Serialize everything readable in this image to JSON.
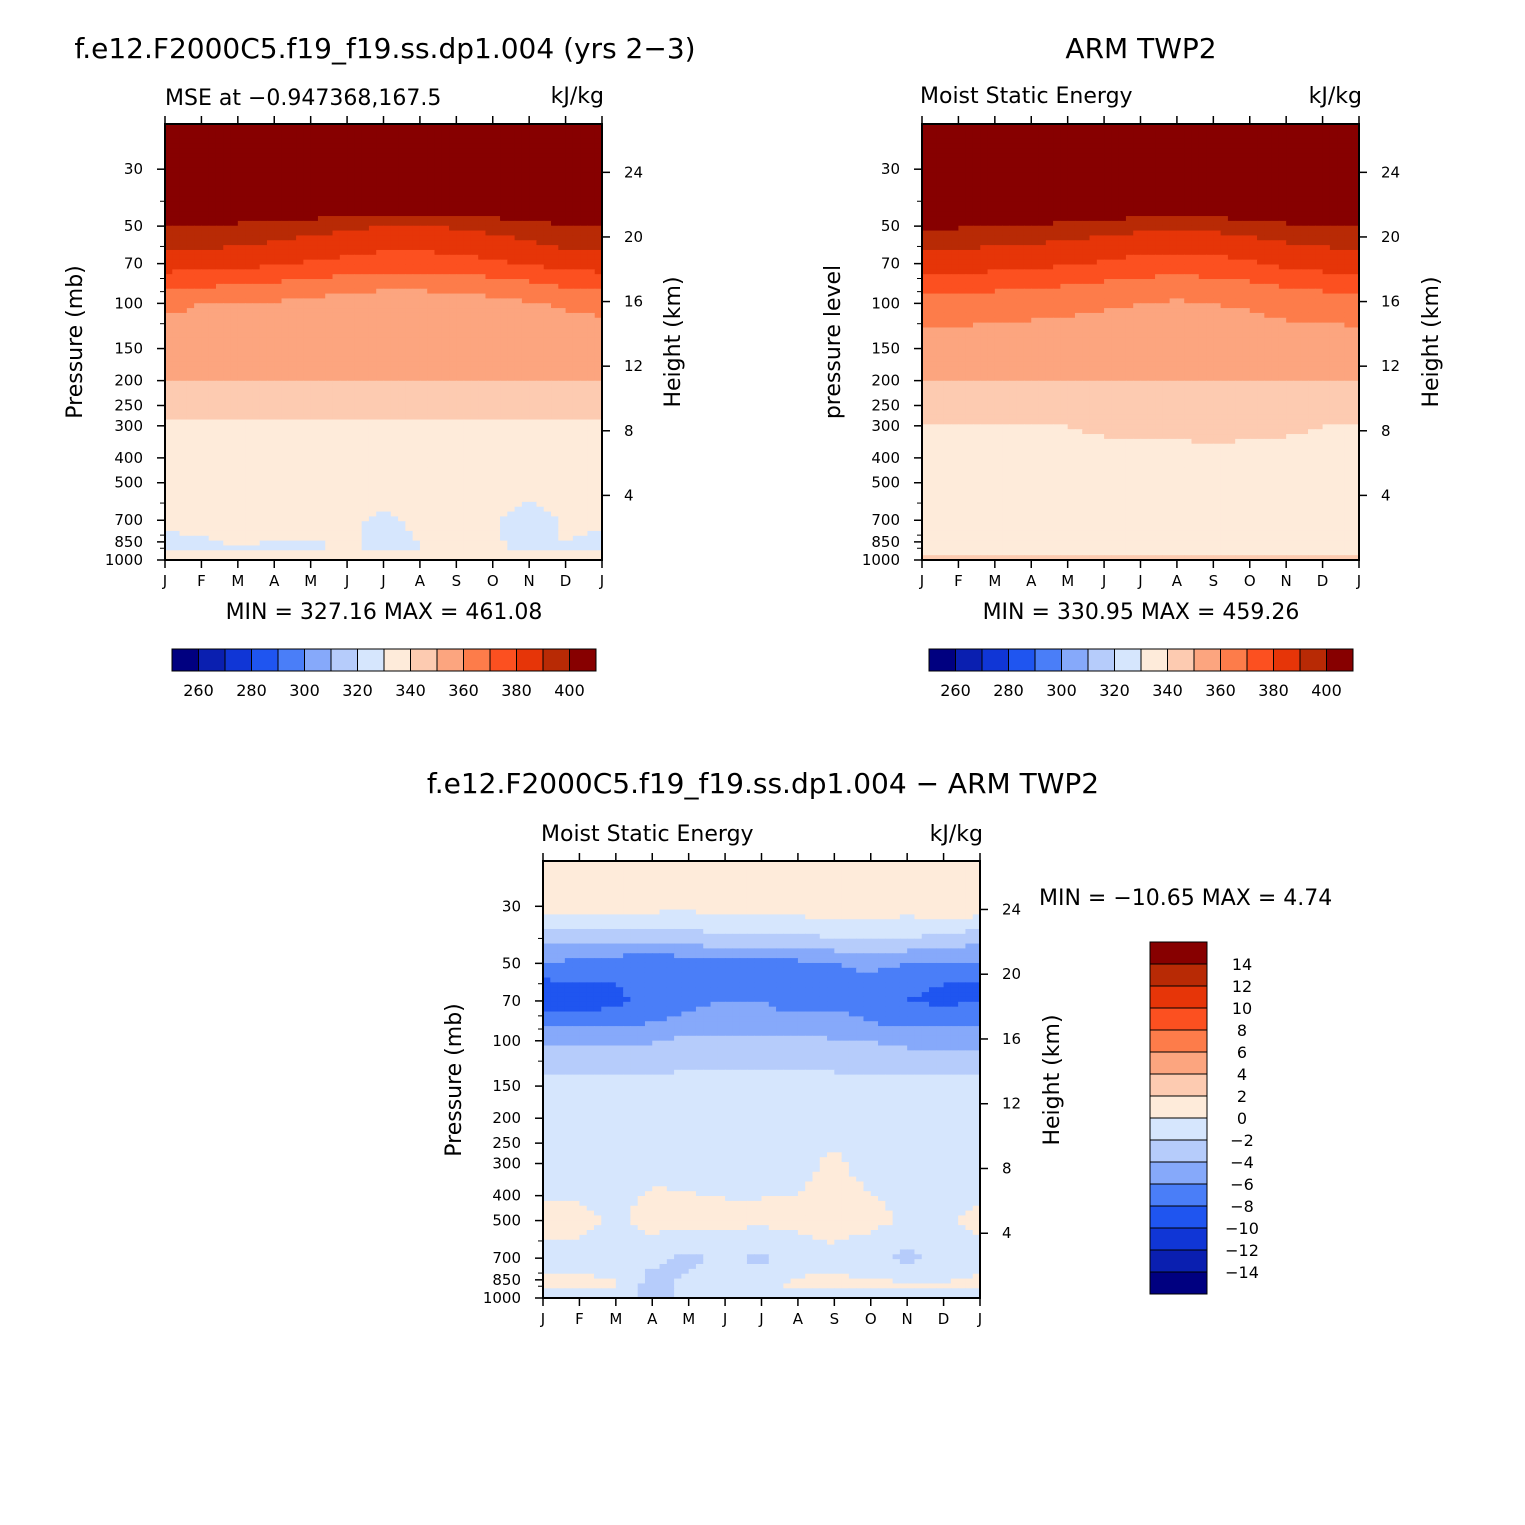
{
  "panels": {
    "model": {
      "title": "f.e12.F2000C5.f19_f19.ss.dp1.004 (yrs 2−3)",
      "subtitle_left": "MSE at −0.947368,167.5",
      "subtitle_right": "kJ/kg",
      "y_label": "Pressure (mb)",
      "y2_label": "Height (km)",
      "minmax": "MIN = 327.16 MAX = 461.08"
    },
    "obs": {
      "title": "ARM TWP2",
      "subtitle_left": "Moist Static Energy",
      "subtitle_right": "kJ/kg",
      "y_label": "pressure level",
      "y2_label": "Height (km)",
      "minmax": "MIN = 330.95 MAX = 459.26"
    },
    "diff": {
      "title": "f.e12.F2000C5.f19_f19.ss.dp1.004 − ARM TWP2",
      "subtitle_left": "Moist Static Energy",
      "subtitle_right": "kJ/kg",
      "y_label": "Pressure (mb)",
      "y2_label": "Height (km)",
      "minmax": "MIN = −10.65 MAX =    4.74"
    }
  },
  "colorbar_full": {
    "colors": [
      "#000080",
      "#0a1fb0",
      "#1036d6",
      "#1f55f0",
      "#4a7ef8",
      "#86a9fa",
      "#b6ccfb",
      "#d6e6fd",
      "#feebda",
      "#fdcbb1",
      "#fca57f",
      "#fd7c4a",
      "#fc5020",
      "#e63508",
      "#b82a05",
      "#870000"
    ],
    "labels": [
      "260",
      "280",
      "300",
      "320",
      "340",
      "360",
      "380",
      "400"
    ]
  },
  "colorbar_diff": {
    "colors": [
      "#000080",
      "#0a1fb0",
      "#1036d6",
      "#1f55f0",
      "#4a7ef8",
      "#86a9fa",
      "#b6ccfb",
      "#d6e6fd",
      "#feebda",
      "#fdcbb1",
      "#fca57f",
      "#fd7c4a",
      "#fc5020",
      "#e63508",
      "#b82a05",
      "#870000"
    ],
    "labels": [
      "14",
      "12",
      "10",
      "8",
      "6",
      "4",
      "2",
      "0",
      "−2",
      "−4",
      "−6",
      "−8",
      "−10",
      "−12",
      "−14"
    ]
  },
  "chart_data": [
    {
      "type": "heatmap",
      "panel": "model",
      "x_categories": [
        "J",
        "F",
        "M",
        "A",
        "M",
        "J",
        "J",
        "A",
        "S",
        "O",
        "N",
        "D",
        "J"
      ],
      "y_ticks_pressure_mb": [
        30,
        50,
        70,
        100,
        150,
        200,
        250,
        300,
        400,
        500,
        700,
        850,
        1000
      ],
      "y2_ticks_height_km": [
        4,
        8,
        12,
        16,
        20,
        24
      ],
      "pressure_levels_mb": [
        1000,
        900,
        700,
        500,
        300,
        200,
        150,
        100,
        85,
        70,
        60,
        50,
        30
      ],
      "contour_levels": [
        260,
        270,
        280,
        290,
        300,
        310,
        320,
        330,
        340,
        350,
        360,
        370,
        380,
        390,
        400
      ],
      "z_kJkg": [
        [
          340,
          340,
          342,
          340,
          341,
          342,
          340,
          341,
          341,
          341,
          340,
          341,
          342
        ],
        [
          327,
          328,
          330,
          329,
          329,
          331,
          328,
          330,
          333,
          331,
          328,
          330,
          327
        ],
        [
          332,
          333,
          333,
          333,
          332,
          331,
          329,
          331,
          332,
          331,
          327,
          331,
          332
        ],
        [
          333,
          333,
          333,
          334,
          334,
          334,
          333,
          334,
          334,
          334,
          333,
          333,
          333
        ],
        [
          338,
          338,
          339,
          339,
          338,
          339,
          338,
          339,
          339,
          339,
          339,
          338,
          338
        ],
        [
          350,
          350,
          350,
          350,
          350,
          350,
          350,
          350,
          350,
          350,
          350,
          350,
          350
        ],
        [
          355,
          355,
          355,
          355,
          355,
          355,
          355,
          355,
          355,
          355,
          355,
          355,
          355
        ],
        [
          362,
          360,
          360,
          359,
          357,
          356,
          355,
          355,
          356,
          357,
          359,
          361,
          362
        ],
        [
          372,
          371,
          370,
          368,
          366,
          364,
          362,
          362,
          363,
          365,
          368,
          371,
          372
        ],
        [
          385,
          384,
          383,
          381,
          379,
          377,
          375,
          375,
          376,
          378,
          381,
          384,
          385
        ],
        [
          392,
          391,
          390,
          388,
          386,
          384,
          382,
          382,
          383,
          385,
          388,
          391,
          392
        ],
        [
          400,
          399,
          398,
          396,
          394,
          392,
          390,
          390,
          391,
          393,
          396,
          399,
          400
        ],
        [
          440,
          440,
          440,
          440,
          440,
          440,
          440,
          440,
          440,
          440,
          440,
          440,
          440
        ]
      ],
      "min": 327.16,
      "max": 461.08
    },
    {
      "type": "heatmap",
      "panel": "obs",
      "x_categories": [
        "J",
        "F",
        "M",
        "A",
        "M",
        "J",
        "J",
        "A",
        "S",
        "O",
        "N",
        "D",
        "J"
      ],
      "y_ticks_pressure_mb": [
        30,
        50,
        70,
        100,
        150,
        200,
        250,
        300,
        400,
        500,
        700,
        850,
        1000
      ],
      "y2_ticks_height_km": [
        4,
        8,
        12,
        16,
        20,
        24
      ],
      "pressure_levels_mb": [
        1000,
        900,
        700,
        500,
        300,
        200,
        150,
        100,
        85,
        70,
        60,
        50,
        30
      ],
      "contour_levels": [
        260,
        270,
        280,
        290,
        300,
        310,
        320,
        330,
        340,
        350,
        360,
        370,
        380,
        390,
        400
      ],
      "z_kJkg": [
        [
          342,
          342,
          342,
          343,
          342,
          342,
          342,
          342,
          342,
          342,
          342,
          342,
          342
        ],
        [
          335,
          335,
          335,
          335,
          335,
          335,
          335,
          335,
          335,
          335,
          335,
          335,
          335
        ],
        [
          335,
          335,
          336,
          335,
          336,
          336,
          336,
          336,
          336,
          336,
          336,
          336,
          335
        ],
        [
          336,
          336,
          336,
          336,
          336,
          336,
          336,
          336,
          336,
          336,
          336,
          336,
          336
        ],
        [
          339,
          340,
          340,
          340,
          340,
          341,
          341,
          341,
          342,
          341,
          341,
          340,
          339
        ],
        [
          350,
          350,
          350,
          350,
          350,
          350,
          350,
          350,
          350,
          350,
          350,
          350,
          350
        ],
        [
          355,
          355,
          355,
          355,
          355,
          355,
          355,
          355,
          355,
          355,
          355,
          355,
          355
        ],
        [
          365,
          365,
          364,
          363,
          362,
          361,
          360,
          359,
          360,
          361,
          363,
          364,
          365
        ],
        [
          375,
          374,
          373,
          372,
          370,
          368,
          366,
          365,
          366,
          368,
          371,
          373,
          375
        ],
        [
          386,
          385,
          384,
          383,
          381,
          379,
          377,
          376,
          377,
          379,
          382,
          384,
          386
        ],
        [
          392,
          391,
          390,
          389,
          387,
          385,
          383,
          382,
          383,
          385,
          388,
          390,
          392
        ],
        [
          401,
          401,
          400,
          399,
          397,
          395,
          393,
          392,
          393,
          395,
          398,
          400,
          401
        ],
        [
          440,
          440,
          440,
          440,
          440,
          440,
          440,
          440,
          440,
          440,
          440,
          440,
          440
        ]
      ],
      "min": 330.95,
      "max": 459.26
    },
    {
      "type": "heatmap",
      "panel": "diff",
      "x_categories": [
        "J",
        "F",
        "M",
        "A",
        "M",
        "J",
        "J",
        "A",
        "S",
        "O",
        "N",
        "D",
        "J"
      ],
      "y_ticks_pressure_mb": [
        30,
        50,
        70,
        100,
        150,
        200,
        250,
        300,
        400,
        500,
        700,
        850,
        1000
      ],
      "y2_ticks_height_km": [
        4,
        8,
        12,
        16,
        20,
        24
      ],
      "pressure_levels_mb": [
        1000,
        900,
        700,
        500,
        300,
        200,
        150,
        100,
        85,
        70,
        60,
        50,
        40,
        30
      ],
      "contour_levels": [
        -14,
        -12,
        -10,
        -8,
        -6,
        -4,
        -2,
        0,
        2,
        4,
        6,
        8,
        10,
        12,
        14
      ],
      "z_kJkg": [
        [
          -1.0,
          -1.0,
          -1.2,
          -2.5,
          -1.5,
          -1.0,
          -1.2,
          -1.0,
          -1.0,
          -1.0,
          -1.5,
          -1.2,
          -1.0
        ],
        [
          0.5,
          0.5,
          0.3,
          -3.0,
          -1.5,
          -0.5,
          -1.0,
          0.5,
          0.5,
          0.5,
          0.5,
          0.3,
          0.5
        ],
        [
          -0.5,
          -0.5,
          -1.0,
          -1.5,
          -2.5,
          -1.5,
          -2.5,
          -1.0,
          -0.5,
          -1.5,
          -2.5,
          -1.5,
          -0.5
        ],
        [
          0.5,
          0.5,
          -0.3,
          0.8,
          0.8,
          0.5,
          0.5,
          0.5,
          0.8,
          0.8,
          -0.5,
          -0.3,
          0.5
        ],
        [
          -1.0,
          -1.0,
          -1.0,
          -0.5,
          -0.8,
          -0.8,
          -0.8,
          -0.6,
          0.4,
          -0.8,
          -1.0,
          -1.0,
          -1.0
        ],
        [
          -1.0,
          -1.0,
          -1.0,
          -1.0,
          -1.0,
          -1.0,
          -1.0,
          -1.0,
          -1.0,
          -1.0,
          -1.0,
          -1.0,
          -1.0
        ],
        [
          -1.2,
          -1.2,
          -1.2,
          -1.2,
          -1.2,
          -1.2,
          -1.2,
          -1.2,
          -1.2,
          -1.2,
          -1.2,
          -1.2,
          -1.2
        ],
        [
          -4.5,
          -4.5,
          -4.5,
          -4.2,
          -3.5,
          -3.5,
          -3.5,
          -3.5,
          -3.8,
          -4.0,
          -4.5,
          -5.0,
          -4.5
        ],
        [
          -6.5,
          -6.5,
          -6.5,
          -6.0,
          -5.5,
          -5.0,
          -5.0,
          -5.0,
          -5.5,
          -6.0,
          -6.5,
          -6.5,
          -6.5
        ],
        [
          -9.0,
          -9.5,
          -8.5,
          -7.0,
          -6.5,
          -6.0,
          -6.0,
          -7.5,
          -6.5,
          -6.5,
          -8.0,
          -8.5,
          -8.0
        ],
        [
          -8.5,
          -8.0,
          -8.0,
          -7.5,
          -7.0,
          -6.5,
          -6.5,
          -6.5,
          -6.5,
          -6.5,
          -7.5,
          -8.0,
          -8.5
        ],
        [
          -6.0,
          -6.5,
          -7.0,
          -7.5,
          -7.0,
          -6.5,
          -6.5,
          -6.5,
          -6.0,
          -5.5,
          -6.0,
          -6.0,
          -6.0
        ],
        [
          -3.5,
          -3.5,
          -3.5,
          -3.5,
          -3.0,
          -2.5,
          -2.5,
          -2.5,
          -2.0,
          -2.0,
          -2.0,
          -2.5,
          -3.5
        ],
        [
          1.5,
          1.5,
          1.0,
          0.8,
          0.5,
          1.0,
          0.8,
          1.0,
          1.5,
          1.5,
          0.8,
          2.0,
          1.5
        ]
      ],
      "min": -10.65,
      "max": 4.74
    }
  ]
}
